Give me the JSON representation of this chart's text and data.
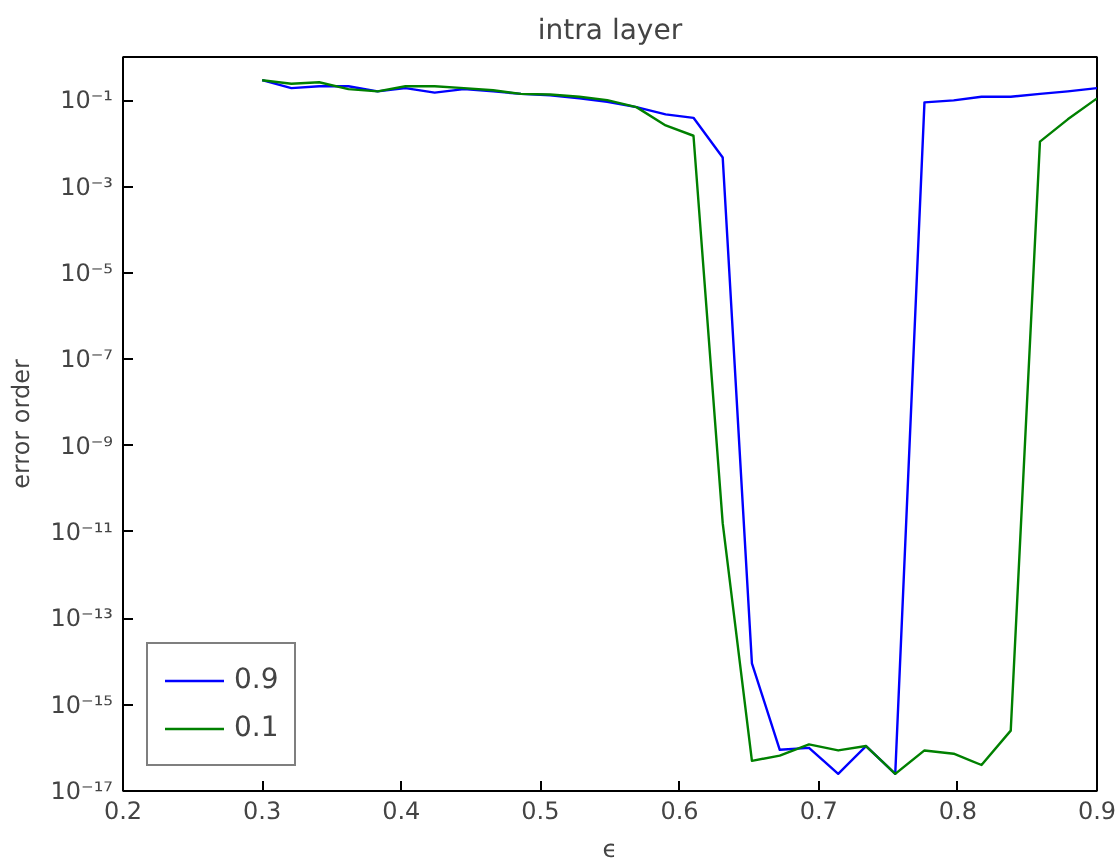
{
  "chart_data": {
    "type": "line",
    "title": "intra layer",
    "xlabel": "ϵ",
    "ylabel": "error order",
    "log": "y",
    "x": [
      0.3,
      0.321,
      0.341,
      0.362,
      0.383,
      0.403,
      0.424,
      0.445,
      0.466,
      0.486,
      0.507,
      0.528,
      0.548,
      0.569,
      0.59,
      0.61,
      0.631,
      0.652,
      0.672,
      0.693,
      0.714,
      0.734,
      0.755,
      0.776,
      0.797,
      0.817,
      0.838,
      0.859,
      0.879,
      0.9
    ],
    "series": [
      {
        "name": "0.9",
        "color": "#0000ff",
        "values": [
          0.29,
          0.19,
          0.21,
          0.21,
          0.16,
          0.19,
          0.15,
          0.18,
          0.16,
          0.14,
          0.13,
          0.11,
          0.092,
          0.069,
          0.047,
          0.039,
          0.0047,
          9e-15,
          9e-17,
          1e-16,
          2.5e-17,
          1.1e-16,
          2.5e-17,
          0.089,
          0.099,
          0.12,
          0.12,
          0.14,
          0.16,
          0.19
        ]
      },
      {
        "name": "0.1",
        "color": "#008000",
        "values": [
          0.29,
          0.24,
          0.26,
          0.18,
          0.16,
          0.21,
          0.21,
          0.19,
          0.17,
          0.14,
          0.135,
          0.12,
          0.1,
          0.069,
          0.026,
          0.015,
          1.6e-11,
          5e-17,
          6.6e-17,
          1.2e-16,
          8.7e-17,
          1.1e-16,
          2.5e-17,
          8.7e-17,
          7.3e-17,
          4e-17,
          2.5e-16,
          0.011,
          0.036,
          0.11
        ]
      }
    ],
    "xlim": [
      0.2,
      0.9
    ],
    "xticks": [
      0.2,
      0.3,
      0.4,
      0.5,
      0.6,
      0.7,
      0.8,
      0.9
    ],
    "ylim": [
      1e-17,
      1
    ],
    "yticks": [
      {
        "value": 1e-17,
        "label": "10⁻¹⁷"
      },
      {
        "value": 1e-15,
        "label": "10⁻¹⁵"
      },
      {
        "value": 1e-13,
        "label": "10⁻¹³"
      },
      {
        "value": 1e-11,
        "label": "10⁻¹¹"
      },
      {
        "value": 1e-09,
        "label": "10⁻⁹"
      },
      {
        "value": 1e-07,
        "label": "10⁻⁷"
      },
      {
        "value": 1e-05,
        "label": "10⁻⁵"
      },
      {
        "value": 0.001,
        "label": "10⁻³"
      },
      {
        "value": 0.1,
        "label": "10⁻¹"
      }
    ],
    "grid": false,
    "legend": "bottom left",
    "marker": "none",
    "line_style": "solid"
  }
}
